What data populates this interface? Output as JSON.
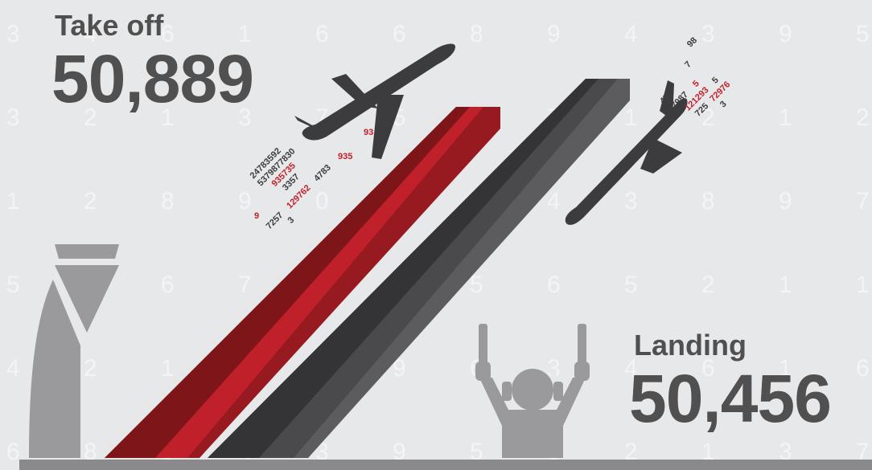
{
  "takeoff": {
    "label": "Take off",
    "value": "50,889"
  },
  "landing": {
    "label": "Landing",
    "value": "50,456"
  },
  "colors": {
    "background": "#e7e8e9",
    "text": "#505050",
    "red_ribbon": "#c0202a",
    "dark_ribbon": "#4a4a4c",
    "icon_gray": "#9a9a9c",
    "plane": "#3c3c3e"
  },
  "icons": [
    "control-tower-icon",
    "takeoff-plane-icon",
    "landing-plane-icon",
    "marshaller-icon"
  ]
}
